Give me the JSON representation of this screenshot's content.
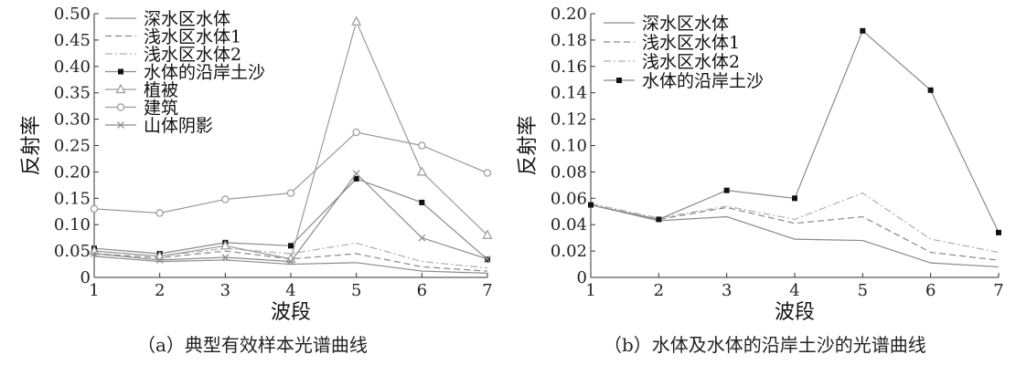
{
  "captions": {
    "a": "（a）典型有效样本光谱曲线",
    "b": "（b）水体及水体的沿岸土沙的光谱曲线"
  },
  "chart_data": [
    {
      "type": "line",
      "title": "",
      "xlabel": "波段",
      "ylabel": "反射率",
      "xlim": [
        1,
        7
      ],
      "ylim": [
        0,
        0.5
      ],
      "x": [
        1,
        2,
        3,
        4,
        5,
        6,
        7
      ],
      "xticks": [
        "1",
        "2",
        "3",
        "4",
        "5",
        "6",
        "7"
      ],
      "yticks": [
        "0",
        "0.05",
        "0.10",
        "0.15",
        "0.20",
        "0.25",
        "0.30",
        "0.35",
        "0.40",
        "0.45",
        "0.50"
      ],
      "legend_position": "top-left",
      "series": [
        {
          "name": "深水区水体",
          "values": [
            0.04,
            0.03,
            0.033,
            0.025,
            0.028,
            0.012,
            0.008
          ],
          "marker": "none",
          "dash": "solid",
          "color": "#8a8a8a"
        },
        {
          "name": "浅水区水体1",
          "values": [
            0.045,
            0.037,
            0.05,
            0.035,
            0.045,
            0.02,
            0.012
          ],
          "marker": "none",
          "dash": "dashed",
          "color": "#8a8a8a"
        },
        {
          "name": "浅水区水体2",
          "values": [
            0.05,
            0.04,
            0.055,
            0.045,
            0.065,
            0.03,
            0.018
          ],
          "marker": "none",
          "dash": "dashdot",
          "color": "#b0b0b0"
        },
        {
          "name": "水体的沿岸土沙",
          "values": [
            0.055,
            0.045,
            0.066,
            0.06,
            0.187,
            0.142,
            0.034
          ],
          "marker": "square",
          "dash": "solid",
          "color": "#8a8a8a"
        },
        {
          "name": "植被",
          "values": [
            0.05,
            0.04,
            0.06,
            0.035,
            0.485,
            0.2,
            0.08
          ],
          "marker": "triangle",
          "dash": "solid",
          "color": "#9a9a9a"
        },
        {
          "name": "建筑",
          "values": [
            0.13,
            0.122,
            0.148,
            0.16,
            0.275,
            0.25,
            0.198
          ],
          "marker": "circle",
          "dash": "solid",
          "color": "#9a9a9a"
        },
        {
          "name": "山体阴影",
          "values": [
            0.045,
            0.033,
            0.038,
            0.03,
            0.197,
            0.075,
            0.035
          ],
          "marker": "x",
          "dash": "solid",
          "color": "#8a8a8a"
        }
      ]
    },
    {
      "type": "line",
      "title": "",
      "xlabel": "波段",
      "ylabel": "反射率",
      "xlim": [
        1,
        7
      ],
      "ylim": [
        0,
        0.2
      ],
      "x": [
        1,
        2,
        3,
        4,
        5,
        6,
        7
      ],
      "xticks": [
        "1",
        "2",
        "3",
        "4",
        "5",
        "6",
        "7"
      ],
      "yticks": [
        "0",
        "0.02",
        "0.04",
        "0.06",
        "0.08",
        "0.10",
        "0.12",
        "0.14",
        "0.16",
        "0.18",
        "0.20"
      ],
      "legend_position": "top-left",
      "series": [
        {
          "name": "深水区水体",
          "values": [
            0.055,
            0.043,
            0.046,
            0.029,
            0.028,
            0.011,
            0.008
          ],
          "marker": "none",
          "dash": "solid",
          "color": "#8a8a8a"
        },
        {
          "name": "浅水区水体1",
          "values": [
            0.055,
            0.044,
            0.053,
            0.041,
            0.046,
            0.019,
            0.013
          ],
          "marker": "none",
          "dash": "dashed",
          "color": "#8a8a8a"
        },
        {
          "name": "浅水区水体2",
          "values": [
            0.056,
            0.045,
            0.054,
            0.044,
            0.064,
            0.029,
            0.019
          ],
          "marker": "none",
          "dash": "dashdot",
          "color": "#b0b0b0"
        },
        {
          "name": "水体的沿岸土沙",
          "values": [
            0.055,
            0.044,
            0.066,
            0.06,
            0.187,
            0.142,
            0.034
          ],
          "marker": "square",
          "dash": "solid",
          "color": "#8a8a8a"
        }
      ]
    }
  ]
}
